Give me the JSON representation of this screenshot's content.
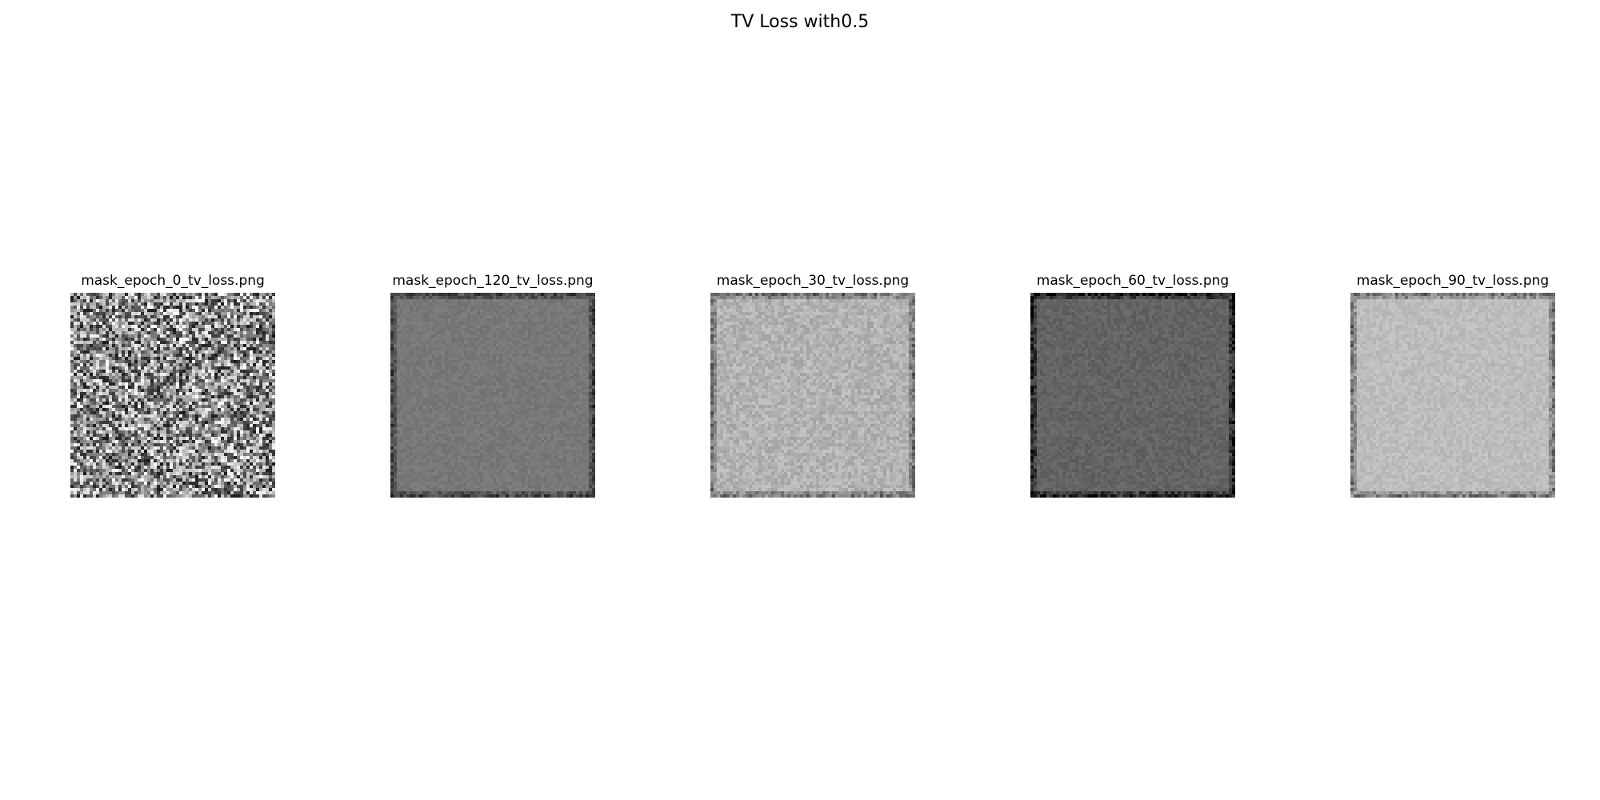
{
  "figure": {
    "title": "TV Loss with0.5"
  },
  "panels": [
    {
      "label": "mask_epoch_0_tv_loss.png",
      "base_gray": 0.55,
      "noise": 0.45,
      "edge_dark": 0.0
    },
    {
      "label": "mask_epoch_120_tv_loss.png",
      "base_gray": 0.47,
      "noise": 0.03,
      "edge_dark": 0.35
    },
    {
      "label": "mask_epoch_30_tv_loss.png",
      "base_gray": 0.7,
      "noise": 0.07,
      "edge_dark": 0.4
    },
    {
      "label": "mask_epoch_60_tv_loss.png",
      "base_gray": 0.39,
      "noise": 0.04,
      "edge_dark": 0.45
    },
    {
      "label": "mask_epoch_90_tv_loss.png",
      "base_gray": 0.74,
      "noise": 0.04,
      "edge_dark": 0.45
    }
  ]
}
